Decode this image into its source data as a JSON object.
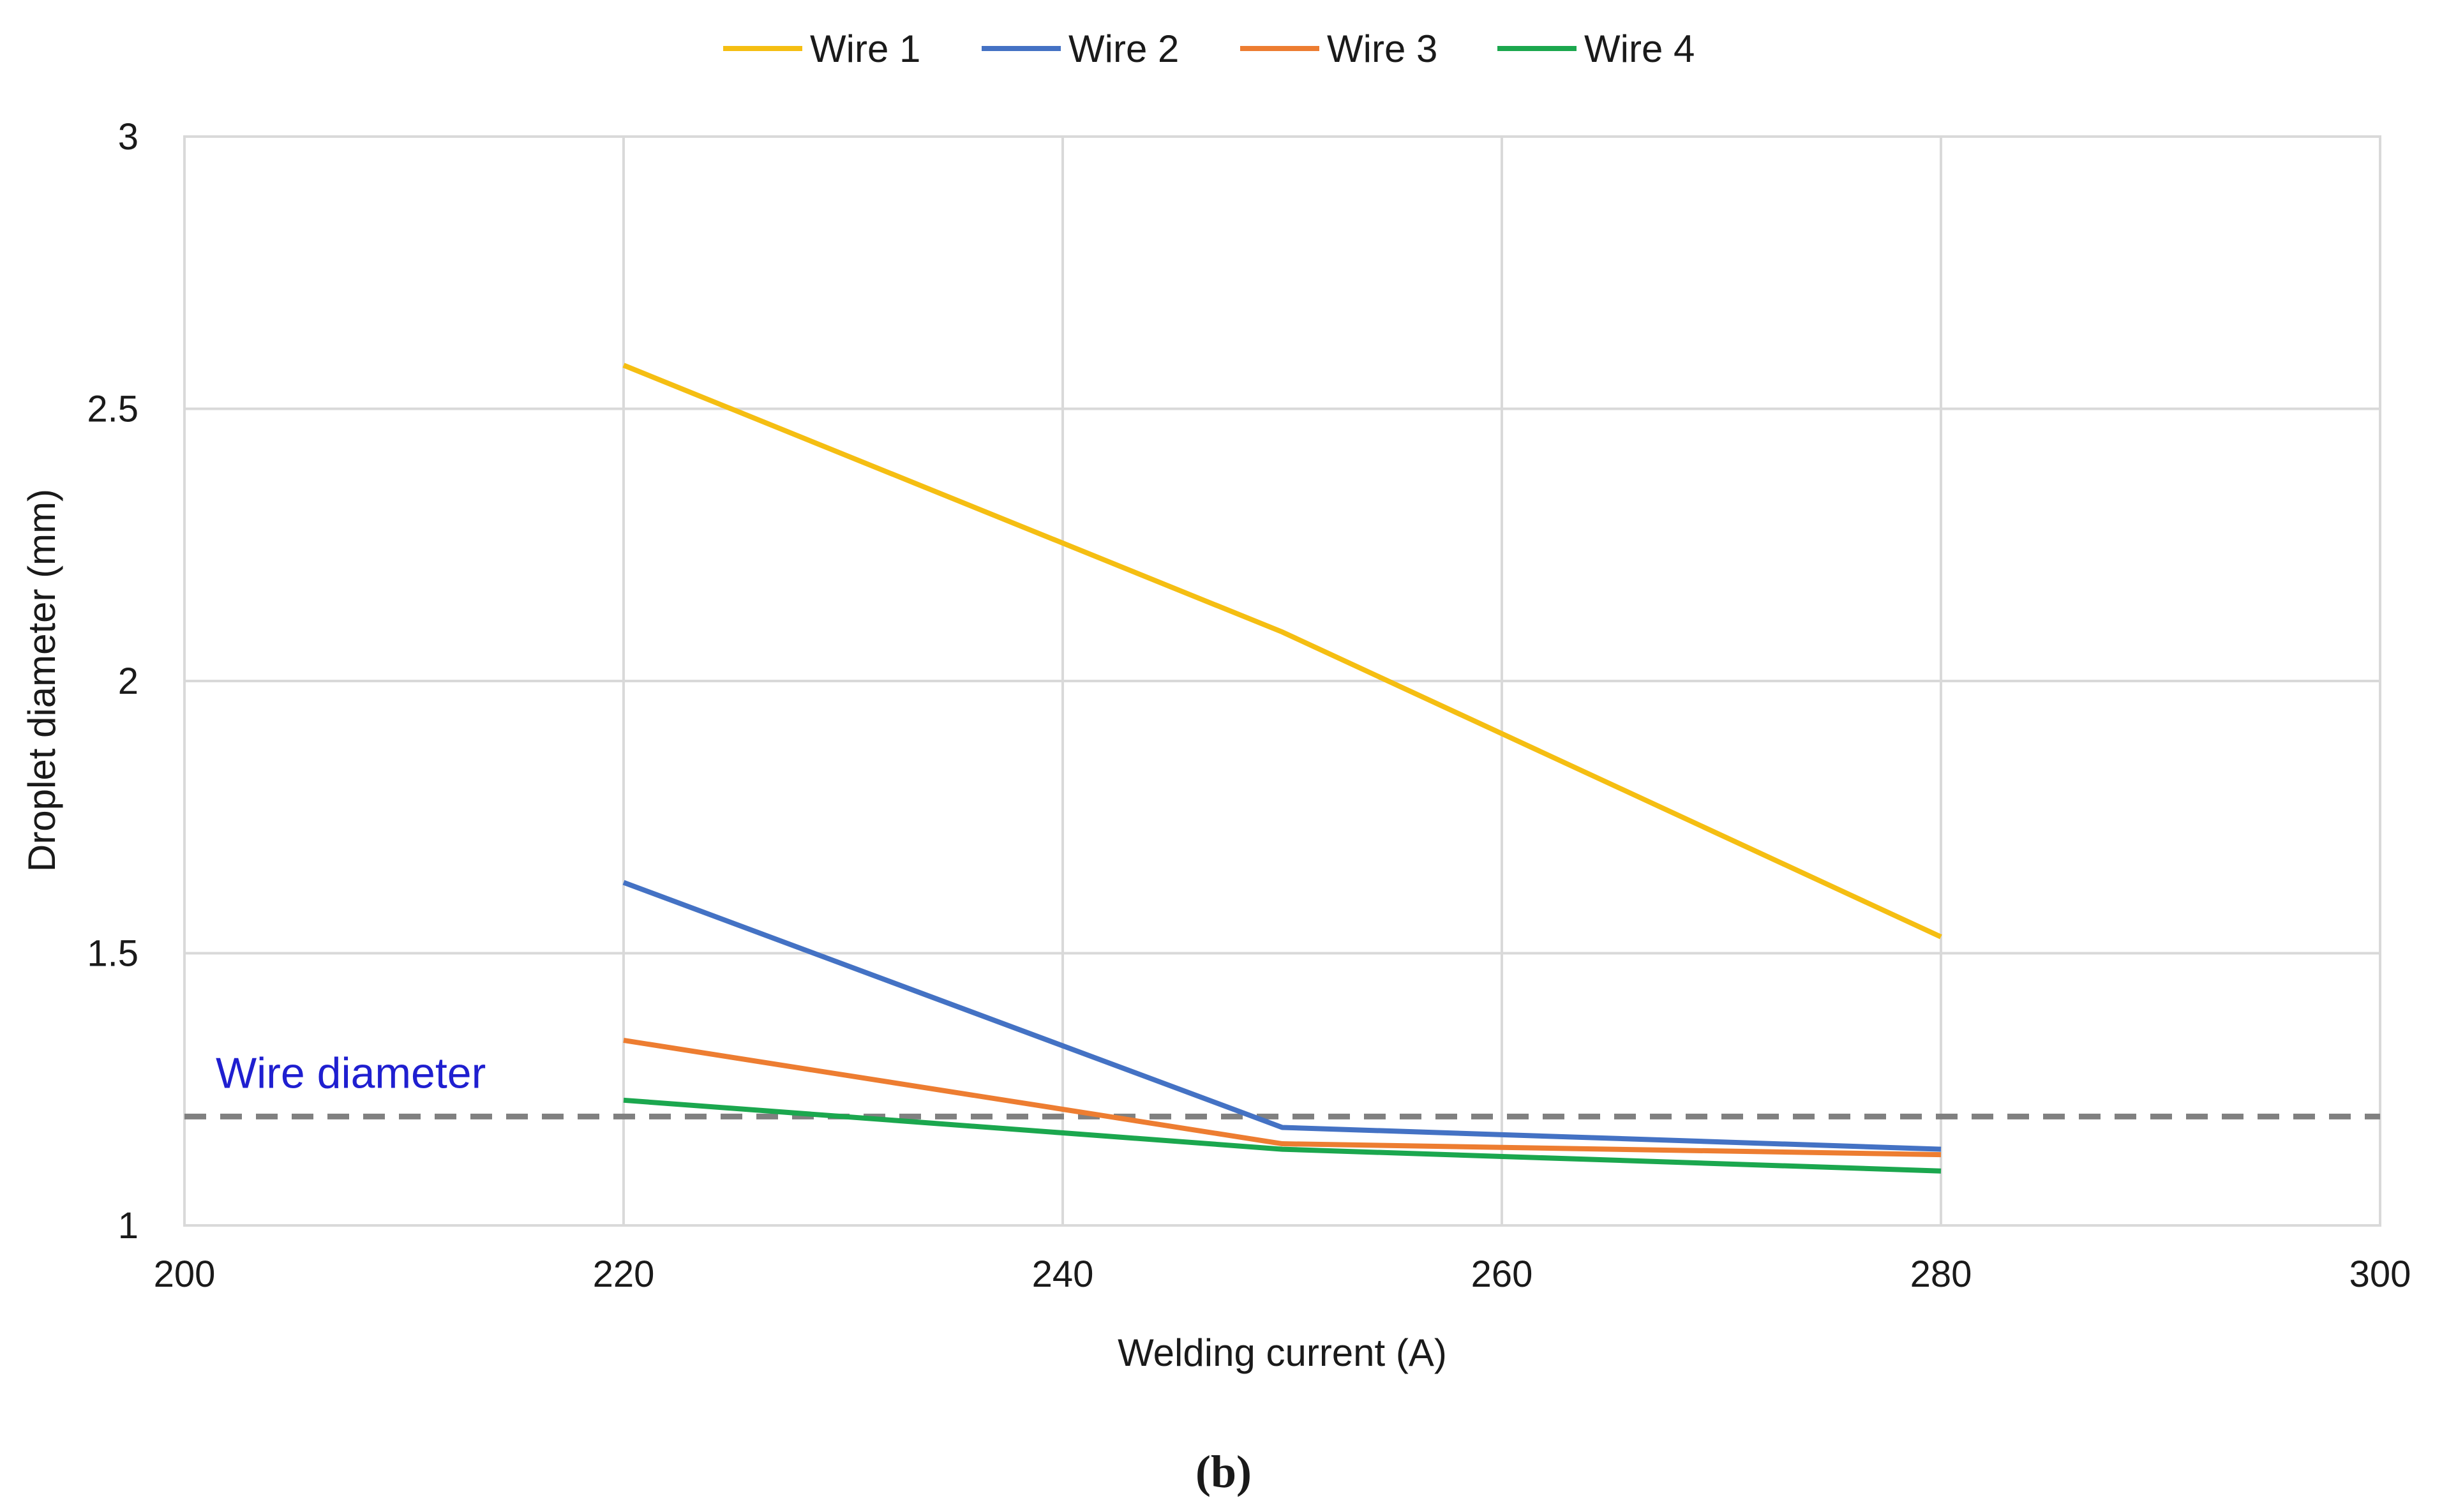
{
  "chart_data": {
    "type": "line",
    "title": "",
    "xlabel": "Welding current (A)",
    "ylabel": "Droplet diameter (mm)",
    "xlim": [
      200,
      300
    ],
    "ylim": [
      1,
      3
    ],
    "xticks": [
      200,
      220,
      240,
      260,
      280,
      300
    ],
    "yticks": [
      1,
      1.5,
      2,
      2.5,
      3
    ],
    "xtick_labels": [
      "200",
      "220",
      "240",
      "260",
      "280",
      "300"
    ],
    "ytick_labels": [
      "1",
      "1.5",
      "2",
      "2.5",
      "3"
    ],
    "grid": true,
    "legend_position": "top-center",
    "x": [
      220,
      250,
      280
    ],
    "series": [
      {
        "name": "Wire 1",
        "color": "#F5BE12",
        "values": [
          2.58,
          2.09,
          1.53
        ]
      },
      {
        "name": "Wire 2",
        "color": "#4472C4",
        "values": [
          1.63,
          1.18,
          1.14
        ]
      },
      {
        "name": "Wire 3",
        "color": "#ED7D31",
        "values": [
          1.34,
          1.15,
          1.13
        ]
      },
      {
        "name": "Wire 4",
        "color": "#1BA74E",
        "values": [
          1.23,
          1.14,
          1.1
        ]
      }
    ],
    "reference_line": {
      "label": "Wire diameter",
      "value": 1.2,
      "color": "#808080",
      "label_color": "#1F1FD0"
    },
    "caption": "(b)"
  },
  "colors": {
    "grid": "#D9D9D9",
    "axis_text": "#1a1a1a"
  }
}
